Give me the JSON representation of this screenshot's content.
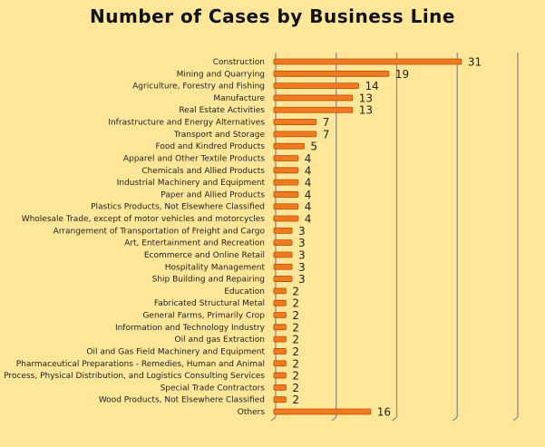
{
  "chart_data": {
    "type": "bar",
    "orientation": "horizontal",
    "title": "Number of Cases by Business Line",
    "xlabel": "",
    "ylabel": "",
    "xlim": [
      0,
      40
    ],
    "grid": true,
    "colors": {
      "bar": "#F07A1E",
      "bar_edge": "#B5520C",
      "background": "#FFE699",
      "grid": "#8C8C8C"
    },
    "categories": [
      "Construction",
      "Mining and Quarrying",
      "Agriculture, Forestry and Fishing",
      "Manufacture",
      "Real Estate Activities",
      "Infrastructure and Energy Alternatives",
      "Transport and Storage",
      "Food and Kindred Products",
      "Apparel and Other Textile Products",
      "Chemicals and Allied Products",
      "Industrial Machinery and Equipment",
      "Paper and Allied Products",
      "Plastics Products, Not Elsewhere Classified",
      "Wholesale Trade, except of motor vehicles and motorcycles",
      "Arrangement of Transportation of Freight and Cargo",
      "Art, Entertainment and Recreation",
      "Ecommerce and Online Retail",
      "Hospitality Management",
      "Ship Building and Repairing",
      "Education",
      "Fabricated Structural Metal",
      "General Farms, Primarily Crop",
      "Information and Technology Industry",
      "Oil and gas Extraction",
      "Oil and Gas Field Machinery and Equipment",
      "Pharmaceutical Preparations - Remedies, Human and Animal",
      "Process, Physical Distribution, and Logistics Consulting Services",
      "Special Trade Contractors",
      "Wood Products, Not Elsewhere Classified",
      "Others"
    ],
    "values": [
      31,
      19,
      14,
      13,
      13,
      7,
      7,
      5,
      4,
      4,
      4,
      4,
      4,
      4,
      3,
      3,
      3,
      3,
      3,
      2,
      2,
      2,
      2,
      2,
      2,
      2,
      2,
      2,
      2,
      16
    ]
  }
}
